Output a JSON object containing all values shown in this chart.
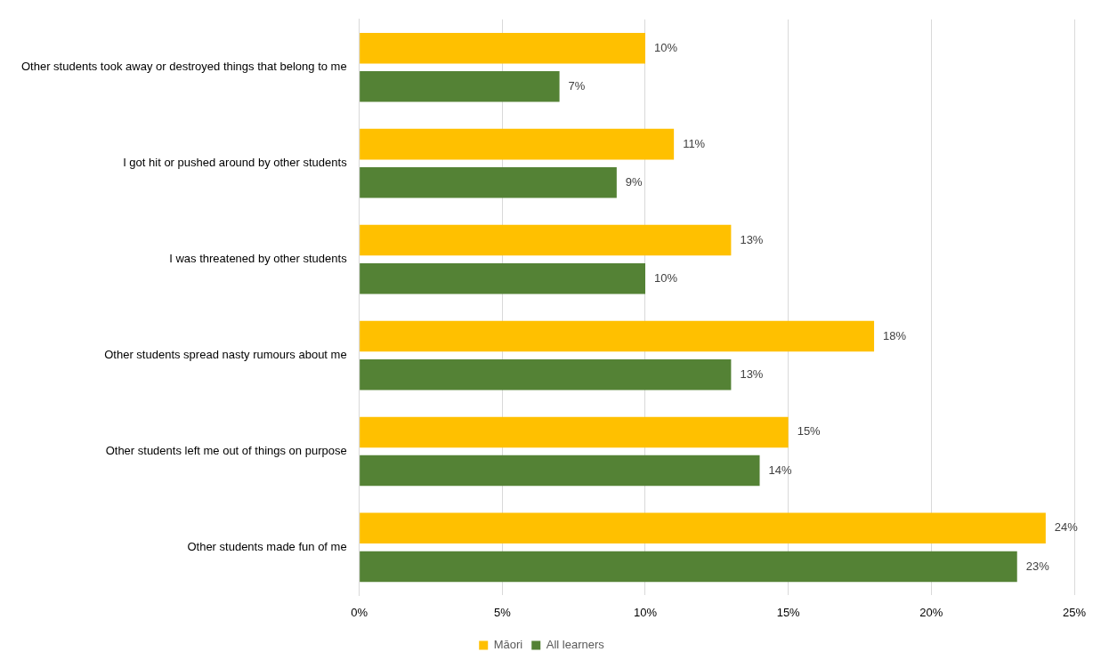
{
  "chart_data": {
    "type": "bar",
    "orientation": "horizontal",
    "categories": [
      "Other students took away or destroyed things that belong to me",
      "I got hit or pushed around by other students",
      "I was threatened by other students",
      "Other students spread nasty rumours about me",
      "Other students left me out of things on purpose",
      "Other students made fun of me"
    ],
    "series": [
      {
        "name": "Māori",
        "color": "#ffc000",
        "values": [
          10,
          11,
          13,
          18,
          15,
          24
        ],
        "value_labels": [
          "10%",
          "11%",
          "13%",
          "18%",
          "15%",
          "24%"
        ]
      },
      {
        "name": "All learners",
        "color": "#548235",
        "values": [
          7,
          9,
          10,
          13,
          14,
          23
        ],
        "value_labels": [
          "7%",
          "9%",
          "10%",
          "13%",
          "14%",
          "23%"
        ]
      }
    ],
    "xlim": [
      0,
      25
    ],
    "xticks": [
      {
        "value": 0,
        "label": "0%"
      },
      {
        "value": 5,
        "label": "5%"
      },
      {
        "value": 10,
        "label": "10%"
      },
      {
        "value": 15,
        "label": "15%"
      },
      {
        "value": 20,
        "label": "20%"
      },
      {
        "value": 25,
        "label": "25%"
      }
    ],
    "grid": "x",
    "legend": "bottom"
  }
}
